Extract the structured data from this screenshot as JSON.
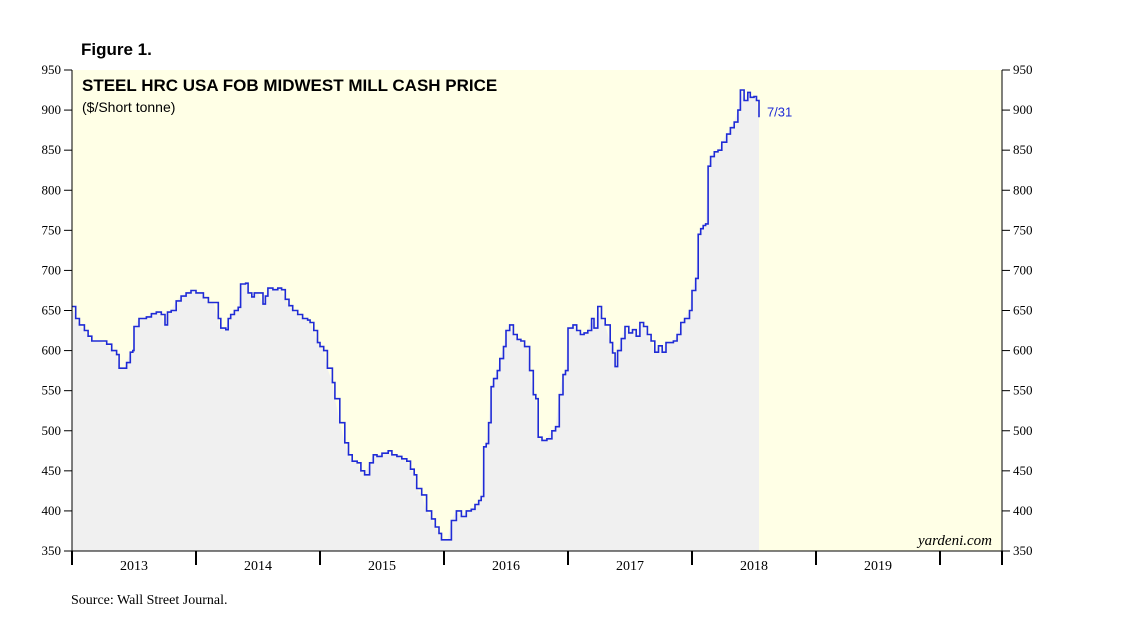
{
  "figure_label": "Figure 1.",
  "source": "Source: Wall Street Journal.",
  "watermark": "yardeni.com",
  "colors": {
    "plot_bg": "#ffffe6",
    "fill": "#f0f0f0",
    "line": "#1f2bd6"
  },
  "chart_data": {
    "type": "line",
    "title": "STEEL HRC USA FOB MIDWEST MILL CASH PRICE",
    "subtitle": "($/Short tonne)",
    "ylim": [
      350,
      950
    ],
    "yticks": [
      350,
      400,
      450,
      500,
      550,
      600,
      650,
      700,
      750,
      800,
      850,
      900,
      950
    ],
    "ytick_labels": [
      "350",
      "400",
      "450",
      "500",
      "550",
      "600",
      "650",
      "700",
      "750",
      "800",
      "850",
      "900",
      "950"
    ],
    "xlim": [
      2012.5,
      2020.0
    ],
    "year_boundaries": [
      2012.5,
      2013.5,
      2014.5,
      2015.5,
      2016.5,
      2017.5,
      2018.5,
      2019.5,
      2020.0
    ],
    "year_labels": [
      {
        "year": 2013,
        "label": "2013"
      },
      {
        "year": 2014,
        "label": "2014"
      },
      {
        "year": 2015,
        "label": "2015"
      },
      {
        "year": 2016,
        "label": "2016"
      },
      {
        "year": 2017,
        "label": "2017"
      },
      {
        "year": 2018,
        "label": "2018"
      },
      {
        "year": 2019,
        "label": "2019"
      }
    ],
    "end_label": "7/31",
    "grid": false,
    "series": [
      {
        "values": [
          [
            2012.5,
            655
          ],
          [
            2012.53,
            640
          ],
          [
            2012.56,
            632
          ],
          [
            2012.6,
            625
          ],
          [
            2012.63,
            618
          ],
          [
            2012.66,
            612
          ],
          [
            2012.72,
            612
          ],
          [
            2012.78,
            608
          ],
          [
            2012.82,
            600
          ],
          [
            2012.86,
            595
          ],
          [
            2012.88,
            578
          ],
          [
            2012.92,
            578
          ],
          [
            2012.94,
            585
          ],
          [
            2012.97,
            598
          ],
          [
            2012.99,
            600
          ],
          [
            2013.0,
            630
          ],
          [
            2013.04,
            640
          ],
          [
            2013.1,
            642
          ],
          [
            2013.14,
            646
          ],
          [
            2013.18,
            648
          ],
          [
            2013.22,
            645
          ],
          [
            2013.25,
            632
          ],
          [
            2013.27,
            648
          ],
          [
            2013.3,
            650
          ],
          [
            2013.34,
            662
          ],
          [
            2013.38,
            668
          ],
          [
            2013.42,
            672
          ],
          [
            2013.46,
            675
          ],
          [
            2013.5,
            672
          ],
          [
            2013.54,
            672
          ],
          [
            2013.56,
            666
          ],
          [
            2013.6,
            660
          ],
          [
            2013.64,
            660
          ],
          [
            2013.68,
            640
          ],
          [
            2013.7,
            628
          ],
          [
            2013.74,
            626
          ],
          [
            2013.76,
            640
          ],
          [
            2013.78,
            645
          ],
          [
            2013.81,
            650
          ],
          [
            2013.84,
            654
          ],
          [
            2013.86,
            683
          ],
          [
            2013.9,
            684
          ],
          [
            2013.92,
            672
          ],
          [
            2013.95,
            667
          ],
          [
            2013.97,
            672
          ],
          [
            2014.0,
            672
          ],
          [
            2014.04,
            658
          ],
          [
            2014.06,
            668
          ],
          [
            2014.08,
            678
          ],
          [
            2014.12,
            676
          ],
          [
            2014.16,
            678
          ],
          [
            2014.19,
            676
          ],
          [
            2014.22,
            664
          ],
          [
            2014.25,
            656
          ],
          [
            2014.28,
            650
          ],
          [
            2014.32,
            645
          ],
          [
            2014.36,
            640
          ],
          [
            2014.4,
            638
          ],
          [
            2014.42,
            635
          ],
          [
            2014.45,
            625
          ],
          [
            2014.48,
            610
          ],
          [
            2014.5,
            605
          ],
          [
            2014.53,
            600
          ],
          [
            2014.56,
            578
          ],
          [
            2014.6,
            560
          ],
          [
            2014.62,
            540
          ],
          [
            2014.66,
            510
          ],
          [
            2014.7,
            485
          ],
          [
            2014.73,
            470
          ],
          [
            2014.76,
            462
          ],
          [
            2014.8,
            460
          ],
          [
            2014.83,
            450
          ],
          [
            2014.86,
            445
          ],
          [
            2014.9,
            460
          ],
          [
            2014.93,
            470
          ],
          [
            2014.96,
            468
          ],
          [
            2015.0,
            472
          ],
          [
            2015.05,
            475
          ],
          [
            2015.08,
            470
          ],
          [
            2015.12,
            468
          ],
          [
            2015.16,
            465
          ],
          [
            2015.2,
            462
          ],
          [
            2015.23,
            452
          ],
          [
            2015.26,
            445
          ],
          [
            2015.28,
            428
          ],
          [
            2015.32,
            420
          ],
          [
            2015.36,
            400
          ],
          [
            2015.4,
            390
          ],
          [
            2015.43,
            380
          ],
          [
            2015.46,
            372
          ],
          [
            2015.48,
            364
          ],
          [
            2015.53,
            364
          ],
          [
            2015.56,
            388
          ],
          [
            2015.6,
            400
          ],
          [
            2015.64,
            393
          ],
          [
            2015.68,
            400
          ],
          [
            2015.72,
            402
          ],
          [
            2015.75,
            408
          ],
          [
            2015.78,
            413
          ],
          [
            2015.8,
            418
          ],
          [
            2015.82,
            480
          ],
          [
            2015.84,
            484
          ],
          [
            2015.86,
            510
          ],
          [
            2015.88,
            555
          ],
          [
            2015.9,
            565
          ],
          [
            2015.93,
            575
          ],
          [
            2015.95,
            590
          ],
          [
            2015.98,
            605
          ],
          [
            2016.0,
            625
          ],
          [
            2016.03,
            632
          ],
          [
            2016.06,
            620
          ],
          [
            2016.09,
            614
          ],
          [
            2016.12,
            612
          ],
          [
            2016.15,
            605
          ],
          [
            2016.17,
            605
          ],
          [
            2016.19,
            575
          ],
          [
            2016.22,
            545
          ],
          [
            2016.24,
            540
          ],
          [
            2016.26,
            492
          ],
          [
            2016.29,
            488
          ],
          [
            2016.33,
            490
          ],
          [
            2016.37,
            500
          ],
          [
            2016.4,
            505
          ],
          [
            2016.43,
            545
          ],
          [
            2016.46,
            570
          ],
          [
            2016.48,
            575
          ],
          [
            2016.5,
            628
          ],
          [
            2016.54,
            632
          ],
          [
            2016.57,
            625
          ],
          [
            2016.6,
            620
          ],
          [
            2016.63,
            622
          ],
          [
            2016.66,
            625
          ],
          [
            2016.69,
            640
          ],
          [
            2016.71,
            628
          ],
          [
            2016.74,
            655
          ],
          [
            2016.77,
            640
          ],
          [
            2016.8,
            632
          ],
          [
            2016.84,
            610
          ],
          [
            2016.86,
            597
          ],
          [
            2016.88,
            580
          ],
          [
            2016.9,
            600
          ],
          [
            2016.93,
            615
          ],
          [
            2016.96,
            630
          ],
          [
            2016.99,
            622
          ],
          [
            2017.02,
            626
          ],
          [
            2017.05,
            618
          ],
          [
            2017.08,
            635
          ],
          [
            2017.11,
            630
          ],
          [
            2017.14,
            620
          ],
          [
            2017.17,
            612
          ],
          [
            2017.2,
            598
          ],
          [
            2017.23,
            606
          ],
          [
            2017.26,
            598
          ],
          [
            2017.29,
            610
          ],
          [
            2017.32,
            610
          ],
          [
            2017.35,
            612
          ],
          [
            2017.38,
            620
          ],
          [
            2017.41,
            635
          ],
          [
            2017.44,
            640
          ],
          [
            2017.48,
            650
          ],
          [
            2017.5,
            675
          ],
          [
            2017.53,
            690
          ],
          [
            2017.55,
            745
          ],
          [
            2017.57,
            752
          ],
          [
            2017.59,
            756
          ],
          [
            2017.61,
            758
          ],
          [
            2017.63,
            830
          ],
          [
            2017.65,
            842
          ],
          [
            2017.68,
            848
          ],
          [
            2017.71,
            850
          ],
          [
            2017.74,
            860
          ],
          [
            2017.78,
            870
          ],
          [
            2017.81,
            878
          ],
          [
            2017.84,
            885
          ],
          [
            2017.87,
            900
          ],
          [
            2017.89,
            925
          ],
          [
            2017.92,
            912
          ],
          [
            2017.95,
            922
          ],
          [
            2017.97,
            916
          ],
          [
            2018.0,
            917
          ],
          [
            2018.02,
            912
          ],
          [
            2018.04,
            891
          ]
        ]
      }
    ]
  }
}
